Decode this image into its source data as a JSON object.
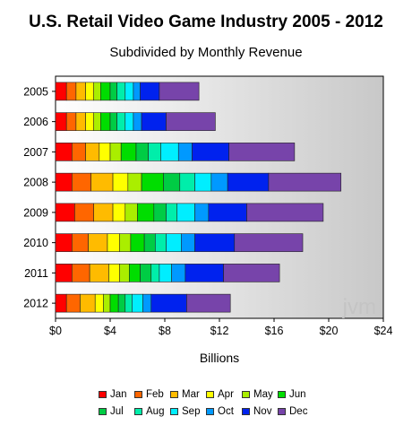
{
  "chart_data": {
    "type": "bar",
    "orientation": "horizontal",
    "stacked": true,
    "title": "U.S. Retail Video Game Industry 2005 - 2012",
    "subtitle": "Subdivided by Monthly Revenue",
    "xlabel": "Billions",
    "ylabel": "",
    "xlim": [
      0,
      24
    ],
    "x_ticks": [
      "$0",
      "$4",
      "$8",
      "$12",
      "$16",
      "$20",
      "$24"
    ],
    "categories": [
      "2005",
      "2006",
      "2007",
      "2008",
      "2009",
      "2010",
      "2011",
      "2012"
    ],
    "series": [
      {
        "name": "Jan",
        "color": "#ff0000",
        "values": [
          0.8,
          0.8,
          1.2,
          1.2,
          1.4,
          1.2,
          1.2,
          0.8
        ]
      },
      {
        "name": "Feb",
        "color": "#ff6600",
        "values": [
          0.7,
          0.7,
          1.0,
          1.4,
          1.4,
          1.2,
          1.3,
          1.0
        ]
      },
      {
        "name": "Mar",
        "color": "#ffbb00",
        "values": [
          0.7,
          0.7,
          1.0,
          1.6,
          1.4,
          1.4,
          1.4,
          1.1
        ]
      },
      {
        "name": "Apr",
        "color": "#ffff00",
        "values": [
          0.6,
          0.6,
          0.8,
          1.1,
          0.9,
          0.9,
          0.8,
          0.6
        ]
      },
      {
        "name": "May",
        "color": "#aaee00",
        "values": [
          0.5,
          0.5,
          0.8,
          1.0,
          0.9,
          0.8,
          0.7,
          0.5
        ]
      },
      {
        "name": "Jun",
        "color": "#00dd00",
        "values": [
          0.7,
          0.7,
          1.1,
          1.6,
          1.2,
          1.0,
          0.8,
          0.6
        ]
      },
      {
        "name": "Jul",
        "color": "#00cc44",
        "values": [
          0.5,
          0.5,
          0.9,
          1.2,
          0.9,
          0.8,
          0.8,
          0.5
        ]
      },
      {
        "name": "Aug",
        "color": "#00eeaa",
        "values": [
          0.6,
          0.6,
          0.9,
          1.1,
          0.8,
          0.8,
          0.6,
          0.5
        ]
      },
      {
        "name": "Sep",
        "color": "#00eeff",
        "values": [
          0.6,
          0.6,
          1.3,
          1.2,
          1.3,
          1.1,
          0.9,
          0.8
        ]
      },
      {
        "name": "Oct",
        "color": "#0099ff",
        "values": [
          0.5,
          0.6,
          1.0,
          1.2,
          1.0,
          1.0,
          1.0,
          0.6
        ]
      },
      {
        "name": "Nov",
        "color": "#0022ee",
        "values": [
          1.4,
          1.8,
          2.7,
          3.0,
          2.8,
          2.9,
          2.8,
          2.6
        ]
      },
      {
        "name": "Dec",
        "color": "#7744aa",
        "values": [
          2.9,
          3.6,
          4.8,
          5.3,
          5.6,
          5.0,
          4.1,
          3.2
        ]
      }
    ],
    "watermark": "jvm",
    "grid": false,
    "legend_position": "bottom"
  }
}
